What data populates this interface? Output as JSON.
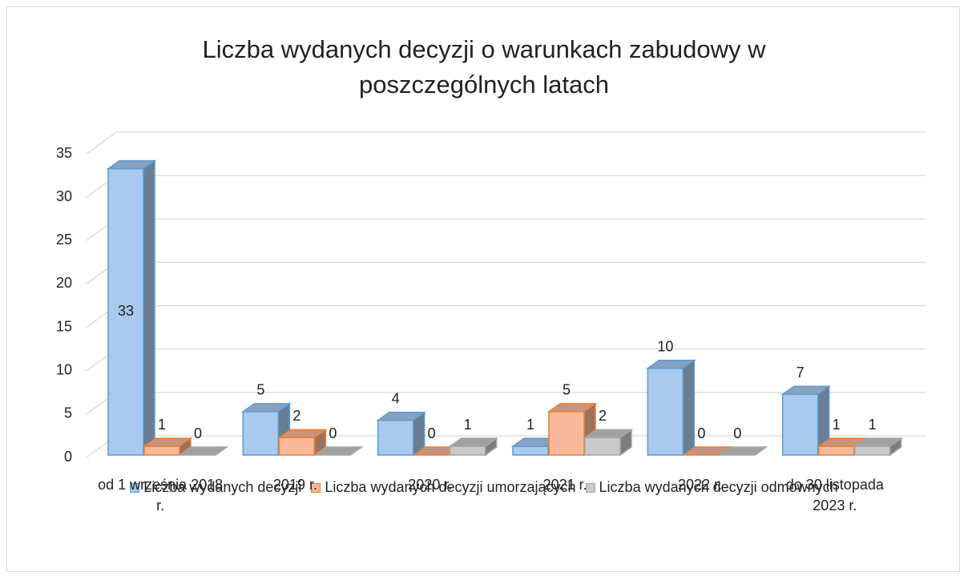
{
  "chart_data": {
    "type": "bar3d",
    "title": "Liczba wydanych decyzji o warunkach zabudowy w poszczególnych latach",
    "categories": [
      "od 1 września 2018 r.",
      "2019 r.",
      "2020 r.",
      "2021 r.",
      "2022 r.",
      "do 30 listopada 2023 r."
    ],
    "series": [
      {
        "name": "Liczba wydanych decyzji",
        "color": "#a9c9ee",
        "values": [
          33,
          5,
          4,
          1,
          10,
          7
        ]
      },
      {
        "name": "Liczba wydanych decyzji umorzających",
        "color": "#f8b99b",
        "values": [
          1,
          2,
          0,
          5,
          0,
          1
        ]
      },
      {
        "name": "Liczba wydanych decyzji odmownych",
        "color": "#c9c9c9",
        "values": [
          0,
          0,
          1,
          2,
          0,
          1
        ]
      }
    ],
    "ylim": [
      0,
      35
    ],
    "yticks": [
      0,
      5,
      10,
      15,
      20,
      25,
      30,
      35
    ],
    "grid": true,
    "legend": "bottom"
  }
}
